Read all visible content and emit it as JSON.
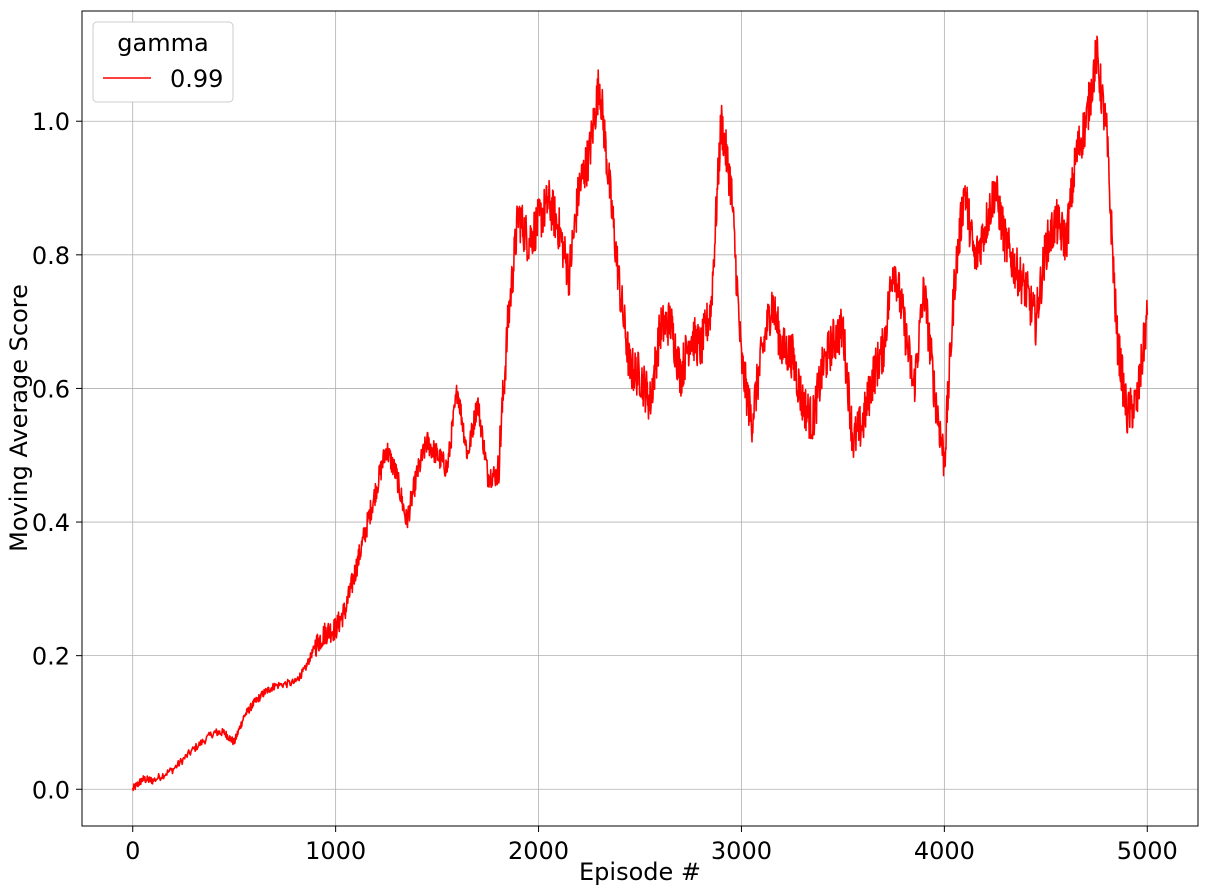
{
  "chart_data": {
    "type": "line",
    "xlabel": "Episode #",
    "ylabel": "Moving Average Score",
    "xlim": [
      -250,
      5250
    ],
    "ylim": [
      -0.055,
      1.165
    ],
    "xticks": [
      0,
      1000,
      2000,
      3000,
      4000,
      5000
    ],
    "xtick_labels": [
      "0",
      "1000",
      "2000",
      "3000",
      "4000",
      "5000"
    ],
    "yticks": [
      0.0,
      0.2,
      0.4,
      0.6,
      0.8,
      1.0
    ],
    "ytick_labels": [
      "0.0",
      "0.2",
      "0.4",
      "0.6",
      "0.8",
      "1.0"
    ],
    "grid": true,
    "legend": {
      "title": "gamma",
      "placement": "top-left"
    },
    "series": [
      {
        "name": "0.99",
        "color": "#ff0000",
        "x": [
          0,
          50,
          100,
          200,
          300,
          400,
          450,
          500,
          550,
          600,
          650,
          700,
          800,
          850,
          900,
          950,
          1000,
          1050,
          1100,
          1150,
          1200,
          1250,
          1300,
          1350,
          1400,
          1450,
          1500,
          1550,
          1600,
          1650,
          1700,
          1750,
          1800,
          1850,
          1900,
          1950,
          2000,
          2050,
          2100,
          2150,
          2200,
          2250,
          2300,
          2350,
          2400,
          2450,
          2500,
          2550,
          2600,
          2650,
          2700,
          2750,
          2800,
          2850,
          2900,
          2950,
          3000,
          3050,
          3100,
          3150,
          3200,
          3250,
          3300,
          3350,
          3400,
          3450,
          3500,
          3550,
          3600,
          3650,
          3700,
          3750,
          3800,
          3850,
          3900,
          3950,
          4000,
          4050,
          4100,
          4150,
          4200,
          4250,
          4300,
          4350,
          4400,
          4450,
          4500,
          4550,
          4600,
          4650,
          4700,
          4750,
          4800,
          4850,
          4900,
          4950,
          5000
        ],
        "values": [
          0.0,
          0.015,
          0.013,
          0.03,
          0.06,
          0.085,
          0.085,
          0.07,
          0.11,
          0.13,
          0.145,
          0.155,
          0.16,
          0.18,
          0.215,
          0.235,
          0.24,
          0.27,
          0.33,
          0.39,
          0.45,
          0.51,
          0.47,
          0.4,
          0.47,
          0.52,
          0.5,
          0.48,
          0.6,
          0.5,
          0.58,
          0.47,
          0.47,
          0.7,
          0.86,
          0.82,
          0.85,
          0.88,
          0.84,
          0.77,
          0.9,
          0.95,
          1.06,
          0.9,
          0.75,
          0.63,
          0.62,
          0.58,
          0.69,
          0.7,
          0.62,
          0.68,
          0.66,
          0.72,
          1.0,
          0.9,
          0.64,
          0.55,
          0.65,
          0.73,
          0.66,
          0.65,
          0.58,
          0.55,
          0.63,
          0.67,
          0.69,
          0.52,
          0.55,
          0.62,
          0.66,
          0.79,
          0.7,
          0.6,
          0.75,
          0.6,
          0.49,
          0.76,
          0.9,
          0.79,
          0.84,
          0.9,
          0.82,
          0.78,
          0.75,
          0.7,
          0.81,
          0.85,
          0.82,
          0.95,
          1.0,
          1.1,
          0.98,
          0.68,
          0.56,
          0.58,
          0.71
        ]
      }
    ]
  }
}
